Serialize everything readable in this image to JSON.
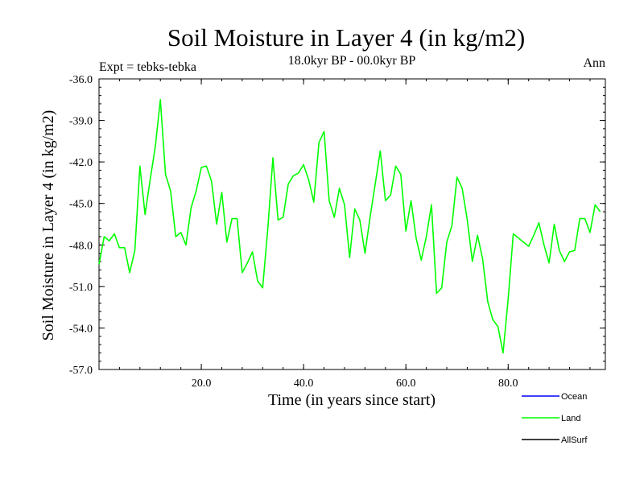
{
  "title": "Soil Moisture in Layer 4 (in kg/m2)",
  "subtitle": "18.0kyr BP - 00.0kyr BP",
  "expt_label": "Expt = tebks-tebka",
  "season_label": "Ann",
  "chart_data": {
    "type": "line",
    "title": "Soil Moisture in Layer 4 (in kg/m2)",
    "xlabel": "Time (in years since start)",
    "ylabel": "Soil Moisture in Layer 4 (in kg/m2)",
    "xlim": [
      0,
      99
    ],
    "ylim": [
      -57.0,
      -36.0
    ],
    "x_ticks": [
      20.0,
      40.0,
      60.0,
      80.0
    ],
    "x_tick_labels": [
      "20.0",
      "40.0",
      "60.0",
      "80.0"
    ],
    "y_ticks": [
      -36.0,
      -39.0,
      -42.0,
      -45.0,
      -48.0,
      -51.0,
      -54.0,
      -57.0
    ],
    "y_tick_labels": [
      "-36.0",
      "-39.0",
      "-42.0",
      "-45.0",
      "-48.0",
      "-51.0",
      "-54.0",
      "-57.0"
    ],
    "grid": false,
    "legend_position": "bottom-right",
    "series": [
      {
        "name": "Ocean",
        "color": "#0000ff",
        "values": []
      },
      {
        "name": "Land",
        "color": "#00ff00",
        "values": [
          -49.4,
          -47.4,
          -47.7,
          -47.2,
          -48.2,
          -48.2,
          -50.0,
          -48.4,
          -42.3,
          -45.8,
          -43.3,
          -40.9,
          -37.5,
          -42.9,
          -44.1,
          -47.4,
          -47.1,
          -48.0,
          -45.3,
          -44.1,
          -42.4,
          -42.3,
          -43.4,
          -46.5,
          -44.2,
          -47.8,
          -46.1,
          -46.1,
          -50.0,
          -49.3,
          -48.5,
          -50.6,
          -51.1,
          -46.8,
          -41.7,
          -46.2,
          -46.0,
          -43.6,
          -43.0,
          -42.8,
          -42.2,
          -43.3,
          -44.9,
          -40.6,
          -39.8,
          -44.8,
          -46.0,
          -43.9,
          -45.1,
          -48.9,
          -45.4,
          -46.2,
          -48.6,
          -46.0,
          -43.6,
          -41.2,
          -44.8,
          -44.4,
          -42.3,
          -42.9,
          -47.0,
          -44.8,
          -47.5,
          -49.1,
          -47.4,
          -45.1,
          -51.5,
          -51.1,
          -47.8,
          -46.6,
          -43.1,
          -43.9,
          -46.2,
          -49.2,
          -47.3,
          -49.0,
          -52.1,
          -53.4,
          -53.9,
          -55.8,
          -51.9,
          -47.2,
          -47.5,
          -47.8,
          -48.1,
          -47.3,
          -46.4,
          -48.0,
          -49.3,
          -46.5,
          -48.4,
          -49.2,
          -48.5,
          -48.4,
          -46.1,
          -46.1,
          -47.1,
          -45.1,
          -45.6
        ]
      },
      {
        "name": "AllSurf",
        "color": "#000000",
        "values": []
      }
    ]
  }
}
